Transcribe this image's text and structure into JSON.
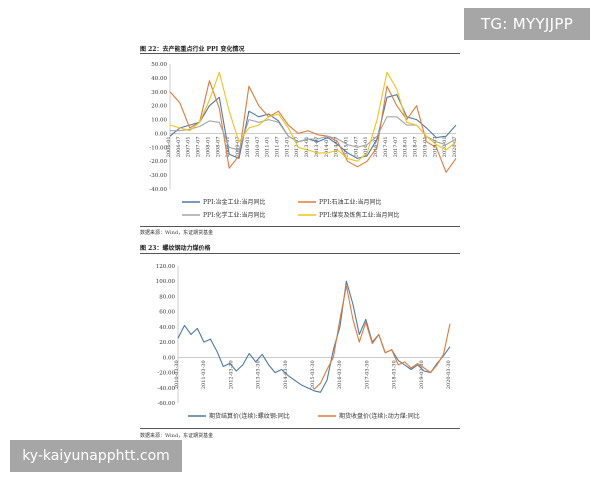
{
  "watermark_top": "TG: MYYJJPP",
  "watermark_bottom": "ky-kaiyunapphtt.com",
  "figure22": {
    "title": "图 22：去产能重点行业 PPI 变化情况",
    "source": "数据来源：Wind，东证期货基金"
  },
  "figure23": {
    "title": "图 23：螺纹钢动力煤价格",
    "source": "数据来源：Wind，东证期货基金"
  },
  "chart_data": [
    {
      "type": "line",
      "title": "",
      "ylim": [
        -40,
        50
      ],
      "yticks": [
        "50.00",
        "40.00",
        "30.00",
        "20.00",
        "10.00",
        "0.00",
        "-10.00",
        "-20.00",
        "-30.00",
        "-40.00"
      ],
      "xticks": [
        "2006-01",
        "2006-07",
        "2007-01",
        "2007-07",
        "2008-01",
        "2008-07",
        "2009-01",
        "2009-07",
        "2010-01",
        "2010-07",
        "2011-01",
        "2011-07",
        "2012-01",
        "2012-07",
        "2013-01",
        "2013-07",
        "2014-01",
        "2014-07",
        "2015-01",
        "2015-07",
        "2016-01",
        "2016-07",
        "2017-01",
        "2017-07",
        "2018-01",
        "2018-07",
        "2019-01",
        "2019-07",
        "2020-01",
        "2020-07"
      ],
      "x": [
        2006.0,
        2006.5,
        2007.0,
        2007.5,
        2008.0,
        2008.5,
        2009.0,
        2009.5,
        2010.0,
        2010.5,
        2011.0,
        2011.5,
        2012.0,
        2012.5,
        2013.0,
        2013.5,
        2014.0,
        2014.5,
        2015.0,
        2015.5,
        2016.0,
        2016.5,
        2017.0,
        2017.5,
        2018.0,
        2018.5,
        2019.0,
        2019.5,
        2020.0,
        2020.5
      ],
      "series": [
        {
          "name": "PPI:冶金工业:当月同比",
          "color": "#4e79a7",
          "values": [
            -2,
            4,
            6,
            8,
            20,
            26,
            -15,
            -18,
            16,
            12,
            14,
            9,
            -2,
            -6,
            -4,
            -6,
            -3,
            -8,
            -14,
            -18,
            -16,
            -4,
            26,
            28,
            12,
            10,
            4,
            -3,
            -2,
            6
          ]
        },
        {
          "name": "PPI:石油工业:当月同比",
          "color": "#e07b39",
          "values": [
            30,
            22,
            4,
            8,
            38,
            18,
            -25,
            -16,
            34,
            20,
            12,
            16,
            6,
            0,
            2,
            -1,
            -2,
            -6,
            -20,
            -24,
            -20,
            -10,
            34,
            20,
            10,
            20,
            -6,
            -10,
            -28,
            -18
          ]
        },
        {
          "name": "PPI:化学工业:当月同比",
          "color": "#a5a5a5",
          "values": [
            2,
            2,
            3,
            5,
            9,
            8,
            -10,
            -12,
            10,
            8,
            10,
            8,
            -2,
            -6,
            -4,
            -4,
            -2,
            -4,
            -8,
            -10,
            -8,
            -2,
            12,
            12,
            6,
            6,
            -2,
            -6,
            -8,
            -4
          ]
        },
        {
          "name": "PPI:煤炭及炼焦工业:当月同比",
          "color": "#f2c318",
          "values": [
            6,
            4,
            2,
            8,
            24,
            44,
            16,
            -6,
            4,
            6,
            12,
            14,
            4,
            -10,
            -12,
            -14,
            -14,
            -12,
            -18,
            -20,
            -14,
            10,
            44,
            32,
            8,
            6,
            -2,
            -8,
            -12,
            -6
          ]
        }
      ]
    },
    {
      "type": "line",
      "title": "",
      "ylim": [
        -60,
        120
      ],
      "yticks": [
        "120.00",
        "100.00",
        "80.00",
        "60.00",
        "40.00",
        "20.00",
        "0.00",
        "-20.00",
        "-40.00",
        "-60.00"
      ],
      "xticks": [
        "2010-03-30",
        "2011-03-30",
        "2012-03-30",
        "2013-03-30",
        "2014-03-30",
        "2015-03-30",
        "2016-03-30",
        "2017-03-30",
        "2018-03-30",
        "2019-03-30",
        "2020-03-30"
      ],
      "x": [
        2010.25,
        2010.5,
        2010.75,
        2011.0,
        2011.25,
        2011.5,
        2011.75,
        2012.0,
        2012.25,
        2012.5,
        2012.75,
        2013.0,
        2013.25,
        2013.5,
        2013.75,
        2014.0,
        2014.25,
        2014.5,
        2014.75,
        2015.0,
        2015.25,
        2015.5,
        2015.75,
        2016.0,
        2016.25,
        2016.5,
        2016.75,
        2017.0,
        2017.25,
        2017.5,
        2017.75,
        2018.0,
        2018.25,
        2018.5,
        2018.75,
        2019.0,
        2019.25,
        2019.5,
        2019.75,
        2020.0,
        2020.25,
        2020.5,
        2020.75
      ],
      "series": [
        {
          "name": "期货结算价(连续):螺纹钢:同比",
          "color": "#4e79a7",
          "values": [
            25,
            42,
            30,
            38,
            20,
            24,
            8,
            -12,
            -8,
            -18,
            -10,
            5,
            -6,
            4,
            -10,
            -20,
            -16,
            -24,
            -30,
            -36,
            -40,
            -44,
            -46,
            -30,
            10,
            40,
            100,
            70,
            30,
            50,
            20,
            30,
            6,
            10,
            -4,
            -10,
            -16,
            -10,
            -18,
            -20,
            -8,
            2,
            14
          ]
        },
        {
          "name": "期货收盘价(连续):动力煤:同比",
          "color": "#e07b39",
          "values": [
            null,
            null,
            null,
            null,
            null,
            null,
            null,
            null,
            null,
            null,
            null,
            null,
            null,
            null,
            null,
            null,
            null,
            null,
            null,
            null,
            null,
            -42,
            -34,
            -16,
            0,
            50,
            94,
            50,
            20,
            46,
            18,
            30,
            6,
            10,
            -10,
            -6,
            -14,
            -8,
            -14,
            -20,
            -10,
            4,
            44
          ]
        }
      ]
    }
  ]
}
